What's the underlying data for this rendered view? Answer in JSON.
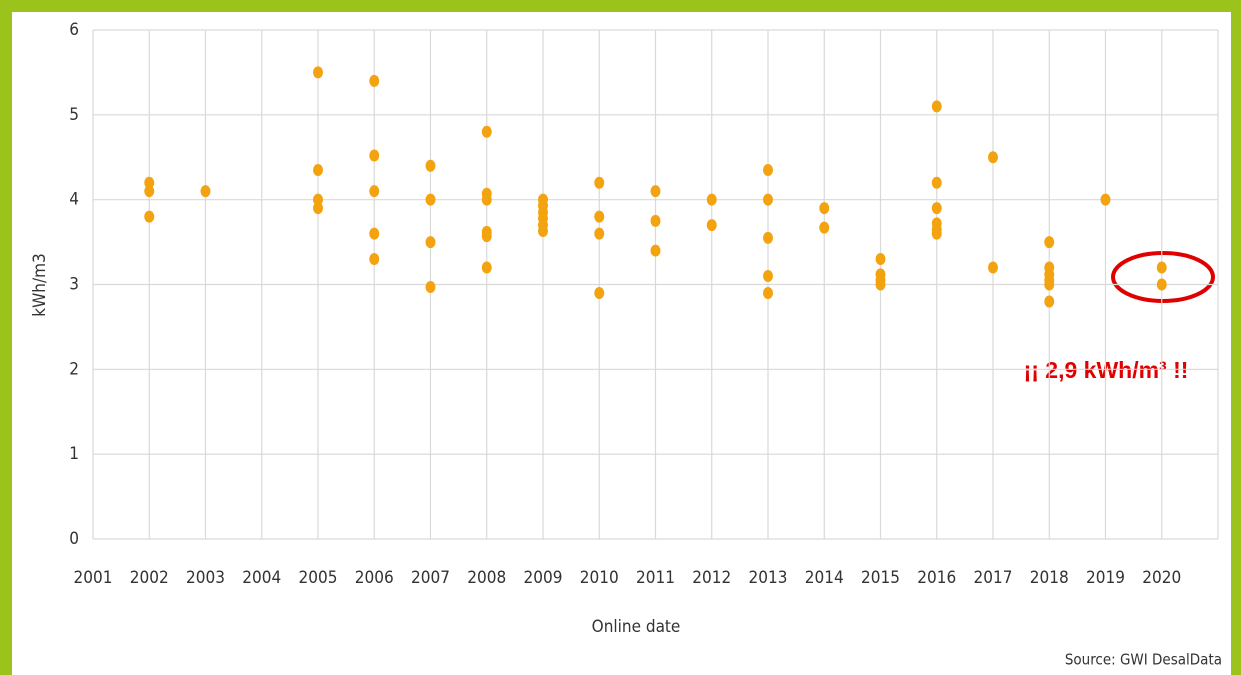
{
  "chart_data": {
    "type": "scatter",
    "x_label": "Online date",
    "y_label": "kWh/m3",
    "annotation": "¡¡ 2,9 kWh/m³ !!",
    "source": "Source: GWI DesalData",
    "color": "#f2a30f",
    "grid": true,
    "xlim": [
      2001,
      2021
    ],
    "xticks": [
      2001,
      2002,
      2003,
      2004,
      2005,
      2006,
      2007,
      2008,
      2009,
      2010,
      2011,
      2012,
      2013,
      2014,
      2015,
      2016,
      2017,
      2018,
      2019,
      2020
    ],
    "ylim": [
      0,
      6
    ],
    "yticks": [
      0,
      1,
      2,
      3,
      4,
      5,
      6
    ],
    "x": [
      2002,
      2002,
      2002,
      2003,
      2005,
      2005,
      2005,
      2005,
      2006,
      2006,
      2006,
      2006,
      2006,
      2007,
      2007,
      2007,
      2007,
      2008,
      2008,
      2008,
      2008,
      2008,
      2008,
      2009,
      2009,
      2009,
      2009,
      2009,
      2009,
      2010,
      2010,
      2010,
      2010,
      2011,
      2011,
      2011,
      2012,
      2012,
      2013,
      2013,
      2013,
      2013,
      2013,
      2014,
      2014,
      2015,
      2015,
      2015,
      2015,
      2016,
      2016,
      2016,
      2016,
      2016,
      2016,
      2017,
      2017,
      2018,
      2018,
      2018,
      2018,
      2018,
      2018,
      2019,
      2020,
      2020
    ],
    "values": [
      4.2,
      4.1,
      3.8,
      4.1,
      5.5,
      4.35,
      4.0,
      3.9,
      5.4,
      4.52,
      4.1,
      3.6,
      3.3,
      4.4,
      4.0,
      3.5,
      2.97,
      4.8,
      4.07,
      4.0,
      3.62,
      3.57,
      3.2,
      4.0,
      3.93,
      3.85,
      3.78,
      3.7,
      3.63,
      4.2,
      3.8,
      3.6,
      2.9,
      4.1,
      3.75,
      3.4,
      4.0,
      3.7,
      4.35,
      4.0,
      3.55,
      3.1,
      2.9,
      3.9,
      3.67,
      3.3,
      3.12,
      3.05,
      3.0,
      5.1,
      4.2,
      3.9,
      3.72,
      3.65,
      3.6,
      4.5,
      3.2,
      3.5,
      3.2,
      3.12,
      3.05,
      3.0,
      2.8,
      4.0,
      3.2,
      3.0
    ]
  }
}
